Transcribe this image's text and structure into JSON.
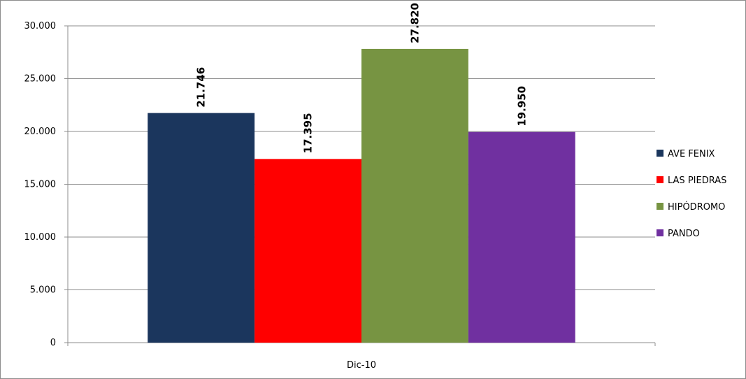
{
  "chart_data": {
    "type": "bar",
    "categories": [
      "Dic-10"
    ],
    "series": [
      {
        "name": "AVE FENIX",
        "values": [
          21746
        ],
        "label": "21.746",
        "color": "#1b365d"
      },
      {
        "name": "LAS PIEDRAS",
        "values": [
          17395
        ],
        "label": "17.395",
        "color": "#ff0000"
      },
      {
        "name": "HIPÓDROMO",
        "values": [
          27820
        ],
        "label": "27.820",
        "color": "#779442"
      },
      {
        "name": "PANDO",
        "values": [
          19950
        ],
        "label": "19.950",
        "color": "#7030a0"
      }
    ],
    "ylim": [
      0,
      30000
    ],
    "yticks": [
      0,
      5000,
      10000,
      15000,
      20000,
      25000,
      30000
    ],
    "ytick_labels": [
      "0",
      "5.000",
      "10.000",
      "15.000",
      "20.000",
      "25.000",
      "30.000"
    ],
    "grid": true,
    "legend_position": "right",
    "title": "",
    "xlabel": "",
    "ylabel": ""
  }
}
